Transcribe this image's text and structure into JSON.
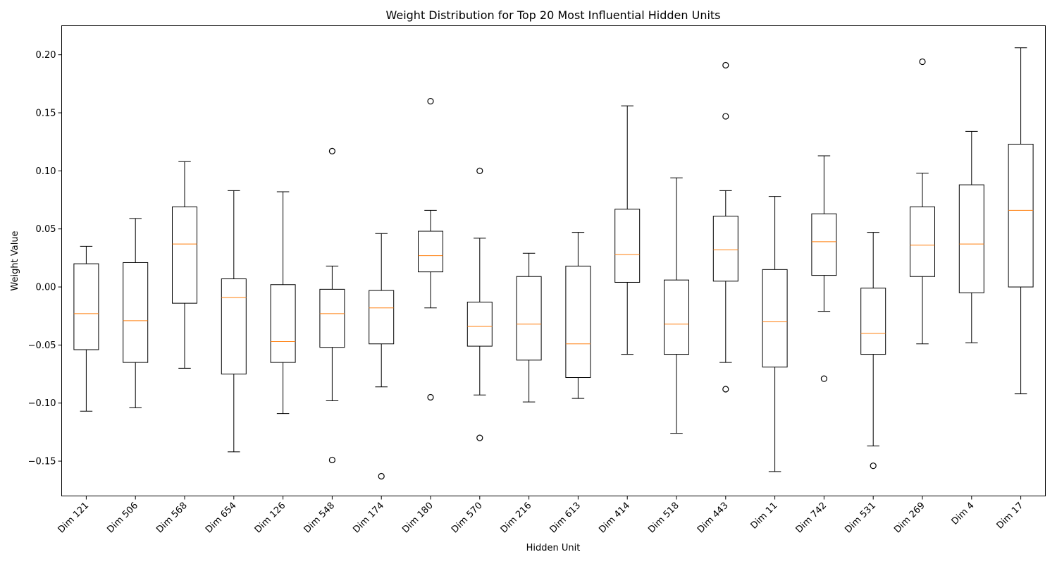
{
  "chart_data": {
    "type": "boxplot",
    "title": "Weight Distribution for Top 20 Most Influential Hidden Units",
    "xlabel": "Hidden Unit",
    "ylabel": "Weight Value",
    "ylim": [
      -0.18,
      0.225
    ],
    "yticks": [
      -0.15,
      -0.1,
      -0.05,
      0.0,
      0.05,
      0.1,
      0.15,
      0.2
    ],
    "ytick_labels": [
      "−0.15",
      "−0.10",
      "−0.05",
      "0.00",
      "0.05",
      "0.10",
      "0.15",
      "0.20"
    ],
    "grid": false,
    "box_color": "#000000",
    "median_color": "#ff7f0e",
    "categories": [
      "Dim 121",
      "Dim 506",
      "Dim 568",
      "Dim 654",
      "Dim 126",
      "Dim 548",
      "Dim 174",
      "Dim 180",
      "Dim 570",
      "Dim 216",
      "Dim 613",
      "Dim 414",
      "Dim 518",
      "Dim 443",
      "Dim 11",
      "Dim 742",
      "Dim 531",
      "Dim 269",
      "Dim 4",
      "Dim 17"
    ],
    "boxes": [
      {
        "whislo": -0.107,
        "q1": -0.054,
        "med": -0.023,
        "q3": 0.02,
        "whishi": 0.035,
        "fliers": []
      },
      {
        "whislo": -0.104,
        "q1": -0.065,
        "med": -0.029,
        "q3": 0.021,
        "whishi": 0.059,
        "fliers": []
      },
      {
        "whislo": -0.07,
        "q1": -0.014,
        "med": 0.037,
        "q3": 0.069,
        "whishi": 0.108,
        "fliers": []
      },
      {
        "whislo": -0.142,
        "q1": -0.075,
        "med": -0.009,
        "q3": 0.007,
        "whishi": 0.083,
        "fliers": []
      },
      {
        "whislo": -0.109,
        "q1": -0.065,
        "med": -0.047,
        "q3": 0.002,
        "whishi": 0.082,
        "fliers": []
      },
      {
        "whislo": -0.098,
        "q1": -0.052,
        "med": -0.023,
        "q3": -0.002,
        "whishi": 0.018,
        "fliers": [
          0.117,
          -0.149
        ]
      },
      {
        "whislo": -0.086,
        "q1": -0.049,
        "med": -0.018,
        "q3": -0.003,
        "whishi": 0.046,
        "fliers": [
          -0.163
        ]
      },
      {
        "whislo": -0.018,
        "q1": 0.013,
        "med": 0.027,
        "q3": 0.048,
        "whishi": 0.066,
        "fliers": [
          0.16,
          -0.095
        ]
      },
      {
        "whislo": -0.093,
        "q1": -0.051,
        "med": -0.034,
        "q3": -0.013,
        "whishi": 0.042,
        "fliers": [
          0.1,
          -0.13
        ]
      },
      {
        "whislo": -0.099,
        "q1": -0.063,
        "med": -0.032,
        "q3": 0.009,
        "whishi": 0.029,
        "fliers": []
      },
      {
        "whislo": -0.096,
        "q1": -0.078,
        "med": -0.049,
        "q3": 0.018,
        "whishi": 0.047,
        "fliers": []
      },
      {
        "whislo": -0.058,
        "q1": 0.004,
        "med": 0.028,
        "q3": 0.067,
        "whishi": 0.156,
        "fliers": []
      },
      {
        "whislo": -0.126,
        "q1": -0.058,
        "med": -0.032,
        "q3": 0.006,
        "whishi": 0.094,
        "fliers": []
      },
      {
        "whislo": -0.065,
        "q1": 0.005,
        "med": 0.032,
        "q3": 0.061,
        "whishi": 0.083,
        "fliers": [
          0.191,
          0.147,
          -0.088
        ]
      },
      {
        "whislo": -0.159,
        "q1": -0.069,
        "med": -0.03,
        "q3": 0.015,
        "whishi": 0.078,
        "fliers": []
      },
      {
        "whislo": -0.021,
        "q1": 0.01,
        "med": 0.039,
        "q3": 0.063,
        "whishi": 0.113,
        "fliers": [
          -0.079
        ]
      },
      {
        "whislo": -0.137,
        "q1": -0.058,
        "med": -0.04,
        "q3": -0.001,
        "whishi": 0.047,
        "fliers": [
          -0.154
        ]
      },
      {
        "whislo": -0.049,
        "q1": 0.009,
        "med": 0.036,
        "q3": 0.069,
        "whishi": 0.098,
        "fliers": [
          0.194
        ]
      },
      {
        "whislo": -0.048,
        "q1": -0.005,
        "med": 0.037,
        "q3": 0.088,
        "whishi": 0.134,
        "fliers": []
      },
      {
        "whislo": -0.092,
        "q1": 0.0,
        "med": 0.066,
        "q3": 0.123,
        "whishi": 0.206,
        "fliers": []
      }
    ]
  }
}
